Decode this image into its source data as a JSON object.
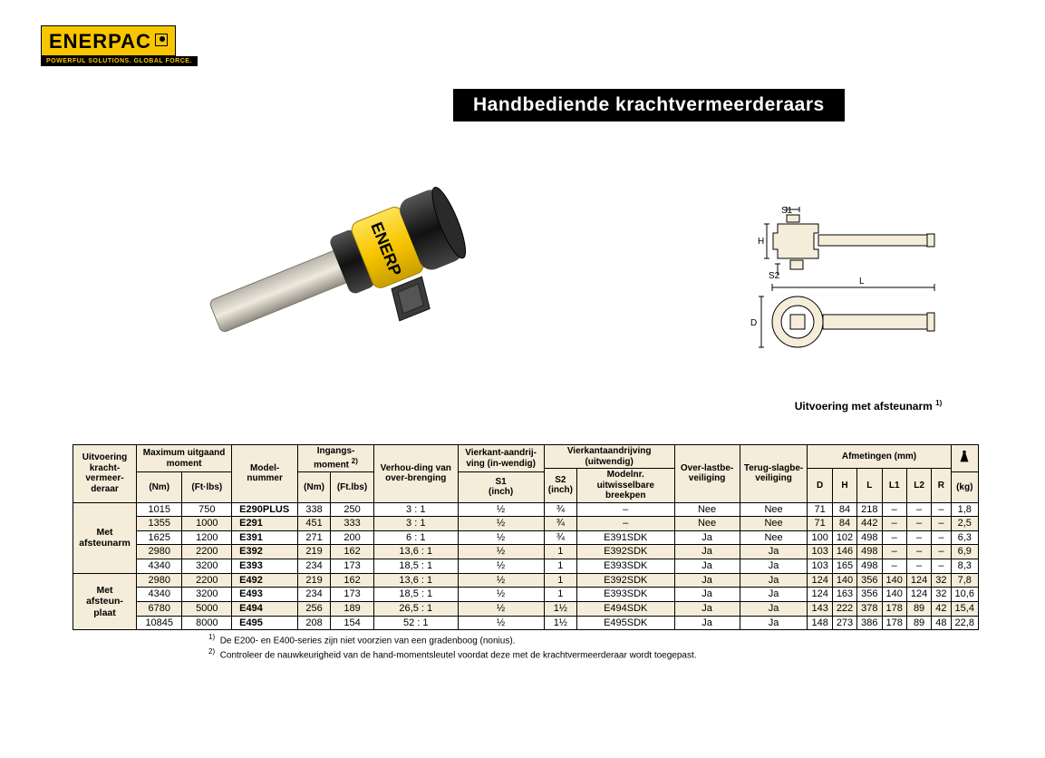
{
  "brand": {
    "name": "ENERPAC",
    "tagline": "POWERFUL SOLUTIONS. GLOBAL FORCE."
  },
  "page_title": "Handbediende krachtvermeerderaars",
  "diagram": {
    "caption": "Uitvoering met afsteunarm ",
    "caption_sup": "1)",
    "labels": {
      "S1": "S1",
      "S2": "S2",
      "H": "H",
      "L": "L",
      "D": "D"
    }
  },
  "table": {
    "headers": {
      "uitvoering": "Uitvoering kracht-vermeer-deraar",
      "max_moment": "Maximum uitgaand moment",
      "max_moment_nm": "(Nm)",
      "max_moment_ftlbs": "(Ft·lbs)",
      "model": "Model-nummer",
      "ingang": "Ingangs-moment ",
      "ingang_sup": "2)",
      "ingang_nm": "(Nm)",
      "ingang_ftlbs": "(Ft.lbs)",
      "verhouding": "Verhou-ding van over-brenging",
      "vierkant_in": "Vierkant-aandrij-ving (in-wendig)",
      "vierkant_in_s1": "S1",
      "vierkant_in_unit": "(inch)",
      "vierkant_uit": "Vierkantaandrijving (uitwendig)",
      "vierkant_uit_s2": "S2",
      "vierkant_uit_s2_unit": "(inch)",
      "vierkant_uit_model": "Modelnr. uitwisselbare breekpen",
      "overlast": "Over-lastbe-veiliging",
      "terugslag": "Terug-slagbe-veiliging",
      "afmetingen": "Afmetingen (mm)",
      "dim_D": "D",
      "dim_H": "H",
      "dim_L": "L",
      "dim_L1": "L1",
      "dim_L2": "L2",
      "dim_R": "R",
      "weight": "(kg)"
    },
    "groups": [
      {
        "label": "Met afsteunarm",
        "rowspan": 5
      },
      {
        "label": "Met afsteun-plaat",
        "rowspan": 4
      }
    ],
    "rows": [
      {
        "group": 0,
        "shade": false,
        "nm": "1015",
        "ftlbs": "750",
        "model": "E290PLUS",
        "in_nm": "338",
        "in_ftlbs": "250",
        "ratio": "3 : 1",
        "s1": "½",
        "s2": "¾",
        "pen": "–",
        "over": "Nee",
        "terug": "Nee",
        "D": "71",
        "H": "84",
        "L": "218",
        "L1": "–",
        "L2": "–",
        "R": "–",
        "kg": "1,8"
      },
      {
        "group": 0,
        "shade": true,
        "nm": "1355",
        "ftlbs": "1000",
        "model": "E291",
        "in_nm": "451",
        "in_ftlbs": "333",
        "ratio": "3 : 1",
        "s1": "½",
        "s2": "¾",
        "pen": "–",
        "over": "Nee",
        "terug": "Nee",
        "D": "71",
        "H": "84",
        "L": "442",
        "L1": "–",
        "L2": "–",
        "R": "–",
        "kg": "2,5"
      },
      {
        "group": 0,
        "shade": false,
        "nm": "1625",
        "ftlbs": "1200",
        "model": "E391",
        "in_nm": "271",
        "in_ftlbs": "200",
        "ratio": "6 : 1",
        "s1": "½",
        "s2": "¾",
        "pen": "E391SDK",
        "over": "Ja",
        "terug": "Nee",
        "D": "100",
        "H": "102",
        "L": "498",
        "L1": "–",
        "L2": "–",
        "R": "–",
        "kg": "6,3"
      },
      {
        "group": 0,
        "shade": true,
        "nm": "2980",
        "ftlbs": "2200",
        "model": "E392",
        "in_nm": "219",
        "in_ftlbs": "162",
        "ratio": "13,6 : 1",
        "s1": "½",
        "s2": "1",
        "pen": "E392SDK",
        "over": "Ja",
        "terug": "Ja",
        "D": "103",
        "H": "146",
        "L": "498",
        "L1": "–",
        "L2": "–",
        "R": "–",
        "kg": "6,9"
      },
      {
        "group": 0,
        "shade": false,
        "nm": "4340",
        "ftlbs": "3200",
        "model": "E393",
        "in_nm": "234",
        "in_ftlbs": "173",
        "ratio": "18,5 : 1",
        "s1": "½",
        "s2": "1",
        "pen": "E393SDK",
        "over": "Ja",
        "terug": "Ja",
        "D": "103",
        "H": "165",
        "L": "498",
        "L1": "–",
        "L2": "–",
        "R": "–",
        "kg": "8,3"
      },
      {
        "group": 1,
        "shade": true,
        "nm": "2980",
        "ftlbs": "2200",
        "model": "E492",
        "in_nm": "219",
        "in_ftlbs": "162",
        "ratio": "13,6 : 1",
        "s1": "½",
        "s2": "1",
        "pen": "E392SDK",
        "over": "Ja",
        "terug": "Ja",
        "D": "124",
        "H": "140",
        "L": "356",
        "L1": "140",
        "L2": "124",
        "R": "32",
        "kg": "7,8"
      },
      {
        "group": 1,
        "shade": false,
        "nm": "4340",
        "ftlbs": "3200",
        "model": "E493",
        "in_nm": "234",
        "in_ftlbs": "173",
        "ratio": "18,5 : 1",
        "s1": "½",
        "s2": "1",
        "pen": "E393SDK",
        "over": "Ja",
        "terug": "Ja",
        "D": "124",
        "H": "163",
        "L": "356",
        "L1": "140",
        "L2": "124",
        "R": "32",
        "kg": "10,6"
      },
      {
        "group": 1,
        "shade": true,
        "nm": "6780",
        "ftlbs": "5000",
        "model": "E494",
        "in_nm": "256",
        "in_ftlbs": "189",
        "ratio": "26,5 : 1",
        "s1": "½",
        "s2": "1½",
        "pen": "E494SDK",
        "over": "Ja",
        "terug": "Ja",
        "D": "143",
        "H": "222",
        "L": "378",
        "L1": "178",
        "L2": "89",
        "R": "42",
        "kg": "15,4"
      },
      {
        "group": 1,
        "shade": false,
        "nm": "10845",
        "ftlbs": "8000",
        "model": "E495",
        "in_nm": "208",
        "in_ftlbs": "154",
        "ratio": "52 : 1",
        "s1": "½",
        "s2": "1½",
        "pen": "E495SDK",
        "over": "Ja",
        "terug": "Ja",
        "D": "148",
        "H": "273",
        "L": "386",
        "L1": "178",
        "L2": "89",
        "R": "48",
        "kg": "22,8"
      }
    ]
  },
  "footnotes": {
    "f1_num": "1)",
    "f1": "De E200- en E400-series zijn niet voorzien van een gradenboog (nonius).",
    "f2_num": "2)",
    "f2": "Controleer de nauwkeurigheid van de hand-momentsleutel voordat deze met de krachtvermeerderaar wordt toegepast."
  },
  "colors": {
    "brand_yellow": "#f7c600",
    "table_header_bg": "#f5edd9",
    "border": "#000000"
  }
}
